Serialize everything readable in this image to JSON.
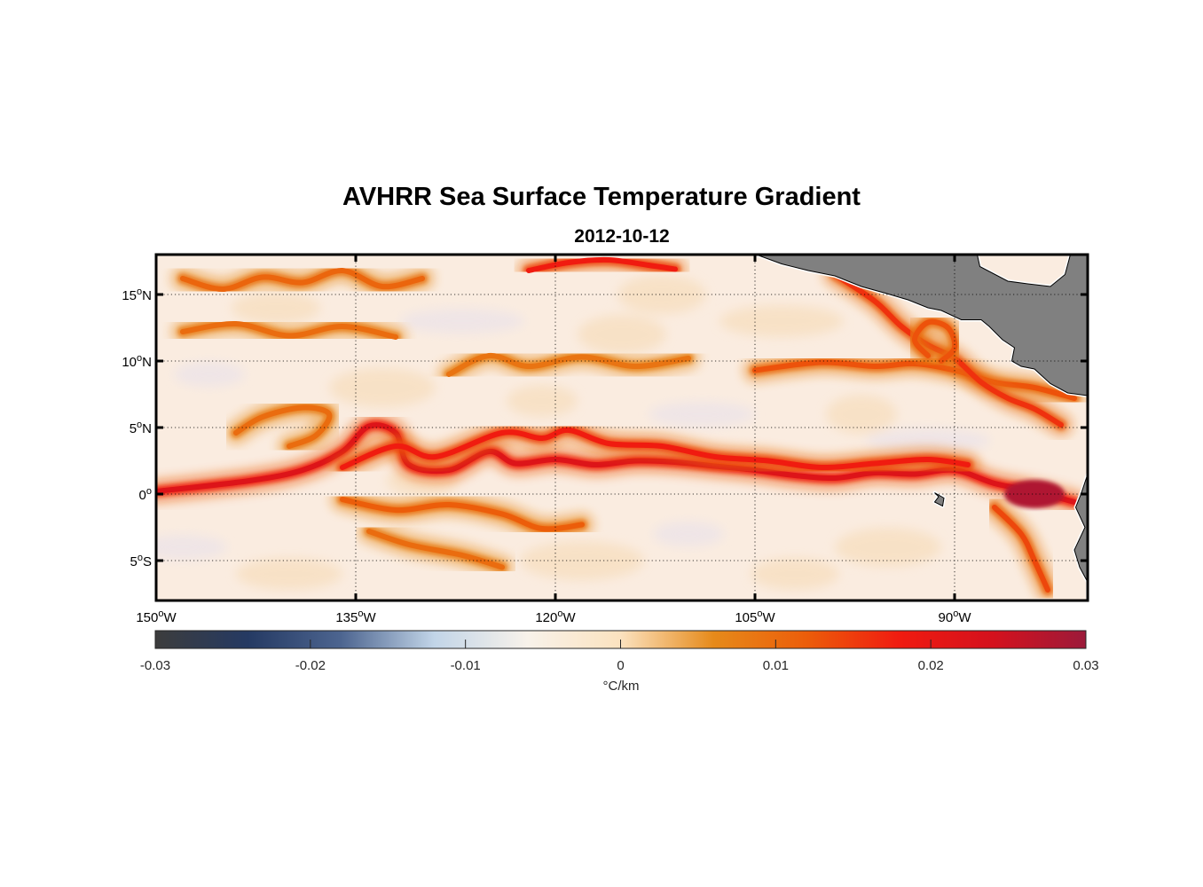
{
  "title": "AVHRR Sea Surface Temperature Gradient",
  "subtitle": "2012-10-12",
  "map": {
    "lon_range": [
      -150,
      -80
    ],
    "lat_range": [
      -8,
      18
    ],
    "lon_ticks": [
      {
        "value": -150,
        "deg": "150",
        "hem": "W"
      },
      {
        "value": -135,
        "deg": "135",
        "hem": "W"
      },
      {
        "value": -120,
        "deg": "120",
        "hem": "W"
      },
      {
        "value": -105,
        "deg": "105",
        "hem": "W"
      },
      {
        "value": -90,
        "deg": "90",
        "hem": "W"
      }
    ],
    "lat_ticks": [
      {
        "value": 15,
        "deg": "15",
        "hem": "N"
      },
      {
        "value": 10,
        "deg": "10",
        "hem": "N"
      },
      {
        "value": 5,
        "deg": "5",
        "hem": "N"
      },
      {
        "value": 0,
        "deg": "0",
        "hem": ""
      },
      {
        "value": -5,
        "deg": "5",
        "hem": "S"
      }
    ],
    "grid": "dotted",
    "land_color": "#808080",
    "fronts": [
      {
        "name": "equatorial-front",
        "strength": 0.022,
        "points": [
          [
            -150,
            0.2
          ],
          [
            -143,
            1.0
          ],
          [
            -139,
            1.8
          ],
          [
            -136,
            3.2
          ],
          [
            -134,
            5.1
          ],
          [
            -132,
            4.6
          ],
          [
            -131,
            2.2
          ],
          [
            -128,
            1.8
          ],
          [
            -125,
            3.2
          ],
          [
            -123,
            2.3
          ],
          [
            -120,
            2.6
          ],
          [
            -117,
            2.2
          ],
          [
            -114,
            2.5
          ],
          [
            -111,
            2.4
          ],
          [
            -108,
            2.1
          ],
          [
            -105,
            1.8
          ],
          [
            -102,
            1.4
          ],
          [
            -99,
            1.2
          ],
          [
            -96,
            1.6
          ],
          [
            -93,
            1.5
          ],
          [
            -90,
            1.8
          ],
          [
            -87,
            0.8
          ],
          [
            -84,
            0.2
          ],
          [
            -81,
            -0.6
          ]
        ]
      },
      {
        "name": "equatorial-front-north-edge",
        "strength": 0.018,
        "points": [
          [
            -136,
            2.0
          ],
          [
            -132,
            3.6
          ],
          [
            -129,
            2.8
          ],
          [
            -124,
            4.6
          ],
          [
            -121,
            4.2
          ],
          [
            -119,
            4.8
          ],
          [
            -116,
            3.8
          ],
          [
            -112,
            3.6
          ],
          [
            -108,
            2.8
          ],
          [
            -104,
            2.5
          ],
          [
            -100,
            2.0
          ],
          [
            -96,
            2.3
          ],
          [
            -92,
            2.6
          ],
          [
            -89,
            2.2
          ]
        ]
      },
      {
        "name": "south-filament",
        "strength": 0.012,
        "points": [
          [
            -136,
            -0.4
          ],
          [
            -132,
            -1.2
          ],
          [
            -128,
            -0.8
          ],
          [
            -124,
            -1.5
          ],
          [
            -121,
            -2.6
          ],
          [
            -118,
            -2.3
          ]
        ]
      },
      {
        "name": "south-filament-2",
        "strength": 0.01,
        "points": [
          [
            -134,
            -2.8
          ],
          [
            -131,
            -3.8
          ],
          [
            -127,
            -4.6
          ],
          [
            -124,
            -5.5
          ]
        ]
      },
      {
        "name": "northern-front",
        "strength": 0.013,
        "points": [
          [
            -105,
            9.3
          ],
          [
            -100,
            9.9
          ],
          [
            -96,
            9.6
          ],
          [
            -93,
            9.8
          ],
          [
            -90,
            9.3
          ],
          [
            -87,
            8.4
          ],
          [
            -84,
            8.0
          ],
          [
            -81,
            7.2
          ]
        ]
      },
      {
        "name": "coastal-front",
        "strength": 0.016,
        "points": [
          [
            -99,
            16.5
          ],
          [
            -96,
            14.5
          ],
          [
            -94,
            12.6
          ],
          [
            -92,
            11.2
          ],
          [
            -90,
            10.2
          ],
          [
            -88,
            8.4
          ],
          [
            -86,
            7.2
          ],
          [
            -84,
            6.4
          ],
          [
            -82,
            5.2
          ]
        ]
      },
      {
        "name": "eddy-ring",
        "strength": 0.013,
        "points": [
          [
            -92,
            10.4
          ],
          [
            -93,
            11.6
          ],
          [
            -92,
            12.9
          ],
          [
            -90.5,
            12.5
          ],
          [
            -90,
            11.0
          ],
          [
            -91,
            10.0
          ]
        ]
      },
      {
        "name": "top-front",
        "strength": 0.018,
        "points": [
          [
            -122,
            16.8
          ],
          [
            -119,
            17.4
          ],
          [
            -116,
            17.6
          ],
          [
            -113,
            17.2
          ],
          [
            -111,
            16.9
          ]
        ]
      },
      {
        "name": "top-left-front",
        "strength": 0.011,
        "points": [
          [
            -148,
            16.2
          ],
          [
            -145,
            15.4
          ],
          [
            -142,
            16.3
          ],
          [
            -139,
            15.9
          ],
          [
            -136,
            16.8
          ],
          [
            -133,
            15.6
          ],
          [
            -130,
            16.2
          ]
        ]
      },
      {
        "name": "mid-north-front",
        "strength": 0.01,
        "points": [
          [
            -148,
            12.2
          ],
          [
            -144,
            12.8
          ],
          [
            -140,
            11.9
          ],
          [
            -136,
            12.6
          ],
          [
            -132,
            11.8
          ]
        ]
      },
      {
        "name": "mid-front-2",
        "strength": 0.009,
        "points": [
          [
            -128,
            9.0
          ],
          [
            -125,
            10.4
          ],
          [
            -122,
            9.6
          ],
          [
            -118,
            10.3
          ],
          [
            -114,
            9.6
          ],
          [
            -110,
            10.2
          ]
        ]
      },
      {
        "name": "west-eddy",
        "strength": 0.01,
        "points": [
          [
            -144,
            4.6
          ],
          [
            -142,
            5.8
          ],
          [
            -139,
            6.5
          ],
          [
            -137,
            6.0
          ],
          [
            -138,
            4.4
          ],
          [
            -140,
            3.6
          ]
        ]
      },
      {
        "name": "southeast-front",
        "strength": 0.014,
        "points": [
          [
            -87,
            -1.0
          ],
          [
            -85,
            -3.0
          ],
          [
            -84,
            -5.0
          ],
          [
            -83,
            -7.2
          ]
        ]
      }
    ],
    "land_polygons": [
      {
        "name": "central-america",
        "points": [
          [
            -104.9,
            18
          ],
          [
            -103,
            17.3
          ],
          [
            -101,
            16.8
          ],
          [
            -99,
            16.4
          ],
          [
            -97,
            15.6
          ],
          [
            -95.2,
            15.1
          ],
          [
            -93.5,
            14.6
          ],
          [
            -92,
            14.0
          ],
          [
            -91,
            13.8
          ],
          [
            -89.5,
            13.1
          ],
          [
            -88,
            13.1
          ],
          [
            -87.4,
            12.6
          ],
          [
            -86.4,
            11.6
          ],
          [
            -85.5,
            11.0
          ],
          [
            -85.7,
            10.0
          ],
          [
            -85.0,
            9.6
          ],
          [
            -84.0,
            9.4
          ],
          [
            -82.8,
            8.3
          ],
          [
            -81.5,
            7.6
          ],
          [
            -80.0,
            7.4
          ],
          [
            -80,
            18
          ],
          [
            -81.3,
            18
          ],
          [
            -81.7,
            16.5
          ],
          [
            -82.8,
            15.6
          ],
          [
            -84.5,
            15.8
          ],
          [
            -86.0,
            16.0
          ],
          [
            -88.1,
            17.1
          ],
          [
            -88.3,
            18.0
          ]
        ]
      },
      {
        "name": "south-america-coast",
        "points": [
          [
            -80,
            1.5
          ],
          [
            -80.5,
            0
          ],
          [
            -80.9,
            -1.0
          ],
          [
            -80.2,
            -2.5
          ],
          [
            -81.0,
            -4.2
          ],
          [
            -80.6,
            -5.5
          ],
          [
            -79.9,
            -6.8
          ],
          [
            -80,
            -8
          ]
        ]
      },
      {
        "name": "galapagos",
        "points": [
          [
            -91.5,
            0.1
          ],
          [
            -90.8,
            -0.3
          ],
          [
            -90.9,
            -0.9
          ],
          [
            -91.5,
            -0.6
          ],
          [
            -91.2,
            -0.2
          ]
        ]
      }
    ]
  },
  "colorbar": {
    "range": [
      -0.03,
      0.03
    ],
    "ticks": [
      "-0.03",
      "-0.02",
      "-0.01",
      "0",
      "0.01",
      "0.02",
      "0.03"
    ],
    "tick_values": [
      -0.03,
      -0.02,
      -0.01,
      0,
      0.01,
      0.02,
      0.03
    ],
    "label": "°C/km",
    "colors": [
      "#3c3c3c",
      "#253a63",
      "#4d6590",
      "#c2d5e8",
      "#f8f2ea",
      "#fbe2bf",
      "#e68a1a",
      "#ec5d0a",
      "#f01b10",
      "#d4111d",
      "#9c1a3a"
    ]
  }
}
